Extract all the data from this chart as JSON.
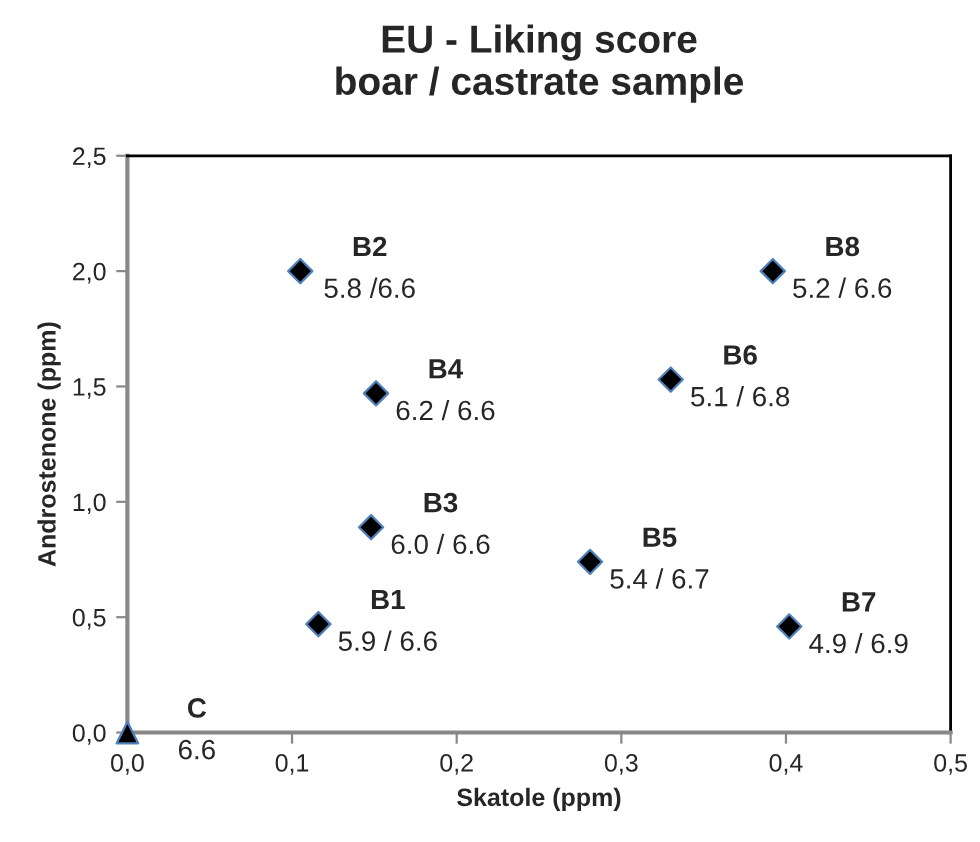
{
  "chart_data": {
    "type": "scatter",
    "title": "EU - Liking score\nboar / castrate sample",
    "xlabel": "Skatole (ppm)",
    "ylabel": "Androstenone (ppm)",
    "series": [
      {
        "color": "#000000",
        "marker": "diamond",
        "x": [
          0.116,
          0.105,
          0.148,
          0.151,
          0.281,
          0.33,
          0.402,
          0.392
        ],
        "values": [
          0.47,
          2.0,
          0.89,
          1.47,
          0.74,
          1.53,
          0.46,
          2.0
        ]
      },
      {
        "color": "#000000",
        "marker": "triangle",
        "x": [
          0.0
        ],
        "values": [
          0.0
        ]
      }
    ],
    "annotations": [
      {
        "text": "B1",
        "x": 0.116,
        "y": 0.47
      },
      {
        "text": "5.9 / 6.6",
        "x": 0.116,
        "y": 0.47
      },
      {
        "text": "B2",
        "x": 0.105,
        "y": 2.0
      },
      {
        "text": "5.8 /6.6",
        "x": 0.105,
        "y": 2.0
      },
      {
        "text": "B3",
        "x": 0.148,
        "y": 0.89
      },
      {
        "text": "6.0 / 6.6",
        "x": 0.148,
        "y": 0.89
      },
      {
        "text": "B4",
        "x": 0.151,
        "y": 1.47
      },
      {
        "text": "6.2 / 6.6",
        "x": 0.151,
        "y": 1.47
      },
      {
        "text": "B5",
        "x": 0.281,
        "y": 0.74
      },
      {
        "text": "5.4 / 6.7",
        "x": 0.281,
        "y": 0.74
      },
      {
        "text": "B6",
        "x": 0.33,
        "y": 1.53
      },
      {
        "text": "5.1 / 6.8",
        "x": 0.33,
        "y": 1.53
      },
      {
        "text": "B7",
        "x": 0.402,
        "y": 0.46
      },
      {
        "text": "4.9 / 6.9",
        "x": 0.402,
        "y": 0.46
      },
      {
        "text": "B8",
        "x": 0.392,
        "y": 2.0
      },
      {
        "text": "5.2 / 6.6",
        "x": 0.392,
        "y": 2.0
      },
      {
        "text": "C",
        "x": 0.0,
        "y": 0.0
      },
      {
        "text": "6.6",
        "x": 0.0,
        "y": 0.0
      }
    ],
    "xlim": [
      0,
      0.5
    ],
    "xticks": [
      {
        "value": 0,
        "label": "0,0"
      },
      {
        "value": 0.1,
        "label": "0,1"
      },
      {
        "value": 0.2,
        "label": "0,2"
      },
      {
        "value": 0.3,
        "label": "0,3"
      },
      {
        "value": 0.4,
        "label": "0,4"
      },
      {
        "value": 0.5,
        "label": "0,5"
      }
    ],
    "ylim": [
      0,
      2.5
    ],
    "yticks": [
      {
        "value": 0,
        "label": "0,0"
      },
      {
        "value": 0.5,
        "label": "0,5"
      },
      {
        "value": 1.0,
        "label": "1,0"
      },
      {
        "value": 1.5,
        "label": "1,5"
      },
      {
        "value": 2.0,
        "label": "2,0"
      },
      {
        "value": 2.5,
        "label": "2,5"
      }
    ],
    "grid": false,
    "legend": false
  }
}
